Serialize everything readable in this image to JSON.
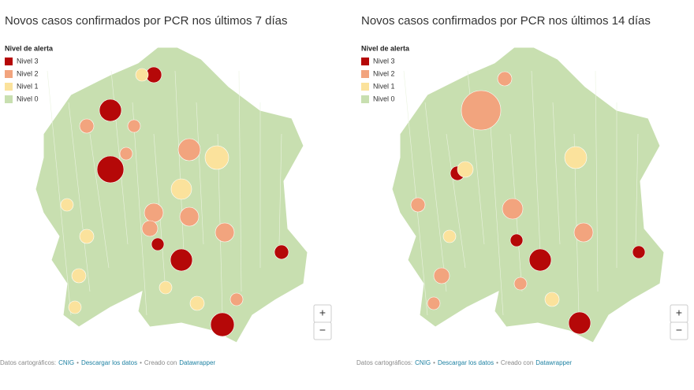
{
  "maps": [
    {
      "title": "Novos casos confirmados por PCR nos últimos 7 días",
      "legend": {
        "title": "Nivel de alerta",
        "items": [
          "Nivel 3",
          "Nivel 2",
          "Nivel 1",
          "Nivel 0"
        ]
      },
      "zoom": [
        "+",
        "−"
      ],
      "footer": {
        "source_label": "Datos cartográficos:",
        "source": "CNIG",
        "separator": "•",
        "download": "Descargar los datos",
        "credit_label": "Creado con",
        "credit": "Datawrapper"
      }
    },
    {
      "title": "Novos casos confirmados por PCR nos últimos 14 días",
      "legend": {
        "title": "Nivel de alerta",
        "items": [
          "Nivel 3",
          "Nivel 2",
          "Nivel 1",
          "Nivel 0"
        ]
      },
      "zoom": [
        "+",
        "−"
      ],
      "footer": {
        "source_label": "Datos cartográficos:",
        "source": "CNIG",
        "separator": "•",
        "download": "Descargar los datos",
        "credit_label": "Creado con",
        "credit": "Datawrapper"
      }
    }
  ]
}
